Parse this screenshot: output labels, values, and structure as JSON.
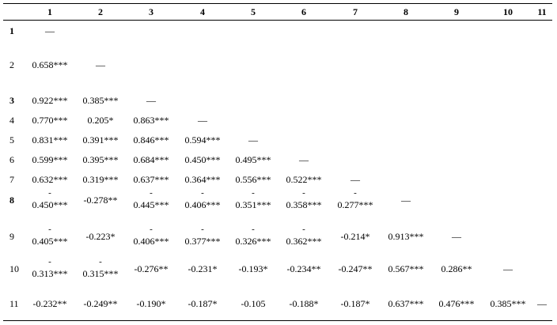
{
  "columns": [
    "1",
    "2",
    "3",
    "4",
    "5",
    "6",
    "7",
    "8",
    "9",
    "10",
    "11"
  ],
  "rows": [
    {
      "label": "1",
      "bold": true,
      "cells": [
        "—"
      ]
    },
    {
      "label": "2",
      "bold": false,
      "cells": [
        "0.658***",
        "—"
      ]
    },
    {
      "label": "3",
      "bold": true,
      "cells": [
        "0.922***",
        "0.385***",
        "—"
      ]
    },
    {
      "label": "4",
      "bold": false,
      "cells": [
        "0.770***",
        "0.205*",
        "0.863***",
        "—"
      ]
    },
    {
      "label": "5",
      "bold": false,
      "cells": [
        "0.831***",
        "0.391***",
        "0.846***",
        "0.594***",
        "—"
      ]
    },
    {
      "label": "6",
      "bold": false,
      "cells": [
        "0.599***",
        "0.395***",
        "0.684***",
        "0.450***",
        "0.495***",
        "—"
      ]
    },
    {
      "label": "7",
      "bold": false,
      "cells": [
        "0.632***",
        "0.319***",
        "0.637***",
        "0.364***",
        "0.556***",
        "0.522***",
        "—"
      ]
    },
    {
      "label": "8",
      "bold": true,
      "cells": [
        "-\n0.450***",
        "-0.278**",
        "-\n0.445***",
        "-\n0.406***",
        "-\n0.351***",
        "-\n0.358***",
        "-\n0.277***",
        "—"
      ]
    },
    {
      "label": "9",
      "bold": false,
      "cells": [
        "-\n0.405***",
        "-0.223*",
        "-\n0.406***",
        "-\n0.377***",
        "-\n0.326***",
        "-\n0.362***",
        "-0.214*",
        "0.913***",
        "—"
      ]
    },
    {
      "label": "10",
      "bold": false,
      "cells": [
        "-\n0.313***",
        "-\n0.315***",
        "-0.276**",
        "-0.231*",
        "-0.193*",
        "-0.234**",
        "-0.247**",
        "0.567***",
        "0.286**",
        "—"
      ]
    },
    {
      "label": "11",
      "bold": false,
      "cells": [
        "-0.232**",
        "-0.249**",
        "-0.190*",
        "-0.187*",
        "-0.105",
        "-0.188*",
        "-0.187*",
        "0.637***",
        "0.476***",
        "0.385***",
        "—"
      ]
    }
  ]
}
